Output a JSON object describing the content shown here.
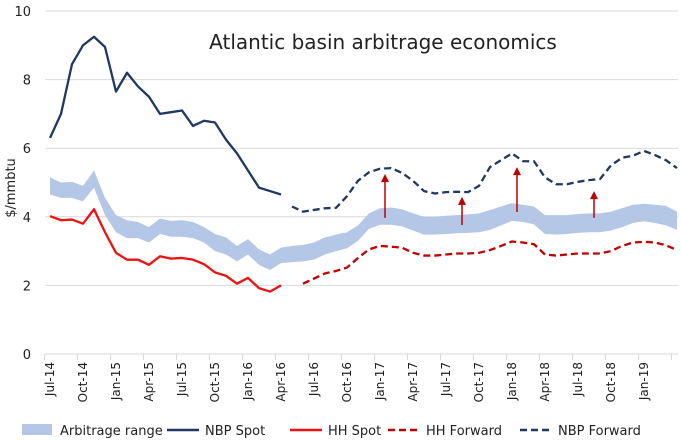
{
  "chart_data": {
    "type": "line",
    "title": "Atlantic basin arbitrage economics",
    "xlabel": "",
    "ylabel": "$/mmbtu",
    "ylim": [
      0,
      10
    ],
    "yticks": [
      0,
      2,
      4,
      6,
      8,
      10
    ],
    "grid": true,
    "legend_position": "bottom",
    "months": [
      "Jul-14",
      "Aug-14",
      "Sep-14",
      "Oct-14",
      "Nov-14",
      "Dec-14",
      "Jan-15",
      "Feb-15",
      "Mar-15",
      "Apr-15",
      "May-15",
      "Jun-15",
      "Jul-15",
      "Aug-15",
      "Sep-15",
      "Oct-15",
      "Nov-15",
      "Dec-15",
      "Jan-16",
      "Feb-16",
      "Mar-16",
      "Apr-16",
      "May-16",
      "Jun-16",
      "Jul-16",
      "Aug-16",
      "Sep-16",
      "Oct-16",
      "Nov-16",
      "Dec-16",
      "Jan-17",
      "Feb-17",
      "Mar-17",
      "Apr-17",
      "May-17",
      "Jun-17",
      "Jul-17",
      "Aug-17",
      "Sep-17",
      "Oct-17",
      "Nov-17",
      "Dec-17",
      "Jan-18",
      "Feb-18",
      "Mar-18",
      "Apr-18",
      "May-18",
      "Jun-18",
      "Jul-18",
      "Aug-18",
      "Sep-18",
      "Oct-18",
      "Nov-18",
      "Dec-18",
      "Jan-19",
      "Feb-19",
      "Mar-19",
      "Apr-19"
    ],
    "tick_labels": [
      "Jul-14",
      "Oct-14",
      "Jan-15",
      "Apr-15",
      "Jul-15",
      "Oct-15",
      "Jan-16",
      "Apr-16",
      "Jul-16",
      "Oct-16",
      "Jan-17",
      "Apr-17",
      "Jul-17",
      "Oct-17",
      "Jan-18",
      "Apr-18",
      "Jul-18",
      "Oct-18",
      "Jan-19"
    ],
    "band": {
      "name": "Arbitrage range",
      "color": "#b4c7e7",
      "upper": [
        5.15,
        5.0,
        5.02,
        4.9,
        5.35,
        4.55,
        4.05,
        3.9,
        3.85,
        3.7,
        3.95,
        3.88,
        3.9,
        3.85,
        3.7,
        3.5,
        3.4,
        3.15,
        3.35,
        3.05,
        2.9,
        3.1,
        3.15,
        3.18,
        3.25,
        3.4,
        3.48,
        3.55,
        3.75,
        4.1,
        4.25,
        4.27,
        4.22,
        4.1,
        4.0,
        4.0,
        4.03,
        4.05,
        4.07,
        4.1,
        4.2,
        4.3,
        4.4,
        4.35,
        4.3,
        4.05,
        4.05,
        4.05,
        4.08,
        4.1,
        4.1,
        4.15,
        4.25,
        4.35,
        4.38,
        4.35,
        4.32,
        4.15
      ],
      "lower": [
        4.65,
        4.55,
        4.55,
        4.45,
        4.85,
        4.05,
        3.55,
        3.38,
        3.38,
        3.25,
        3.5,
        3.42,
        3.42,
        3.38,
        3.25,
        3.0,
        2.9,
        2.7,
        2.9,
        2.6,
        2.45,
        2.65,
        2.68,
        2.7,
        2.75,
        2.9,
        3.0,
        3.08,
        3.3,
        3.65,
        3.77,
        3.77,
        3.72,
        3.6,
        3.48,
        3.48,
        3.5,
        3.52,
        3.53,
        3.55,
        3.62,
        3.75,
        3.88,
        3.85,
        3.78,
        3.5,
        3.48,
        3.5,
        3.53,
        3.55,
        3.55,
        3.6,
        3.7,
        3.82,
        3.87,
        3.82,
        3.75,
        3.62
      ]
    },
    "series": [
      {
        "name": "NBP Spot",
        "color": "#1f3864",
        "dash": false,
        "values": [
          6.3,
          7.0,
          8.45,
          9.0,
          9.25,
          8.95,
          7.65,
          8.2,
          7.8,
          7.5,
          7.0,
          7.05,
          7.1,
          6.65,
          6.8,
          6.75,
          6.25,
          5.85,
          5.35,
          4.85,
          4.75,
          4.65,
          null,
          null,
          null,
          null,
          null,
          null,
          null,
          null,
          null,
          null,
          null,
          null,
          null,
          null,
          null,
          null,
          null,
          null,
          null,
          null,
          null,
          null,
          null,
          null,
          null,
          null,
          null,
          null,
          null,
          null,
          null,
          null,
          null,
          null,
          null,
          null
        ]
      },
      {
        "name": "HH Spot",
        "color": "#ee1111",
        "dash": false,
        "values": [
          4.02,
          3.9,
          3.92,
          3.8,
          4.22,
          3.55,
          2.95,
          2.75,
          2.75,
          2.6,
          2.85,
          2.78,
          2.8,
          2.75,
          2.62,
          2.38,
          2.28,
          2.05,
          2.22,
          1.92,
          1.82,
          2.0,
          null,
          null,
          null,
          null,
          null,
          null,
          null,
          null,
          null,
          null,
          null,
          null,
          null,
          null,
          null,
          null,
          null,
          null,
          null,
          null,
          null,
          null,
          null,
          null,
          null,
          null,
          null,
          null,
          null,
          null,
          null,
          null,
          null,
          null,
          null,
          null
        ]
      },
      {
        "name": "HH Forward",
        "color": "#c00000",
        "dash": true,
        "values": [
          null,
          null,
          null,
          null,
          null,
          null,
          null,
          null,
          null,
          null,
          null,
          null,
          null,
          null,
          null,
          null,
          null,
          null,
          null,
          null,
          null,
          null,
          null,
          2.05,
          2.2,
          2.35,
          2.42,
          2.52,
          2.8,
          3.05,
          3.15,
          3.13,
          3.1,
          2.95,
          2.87,
          2.87,
          2.9,
          2.93,
          2.93,
          2.95,
          3.03,
          3.15,
          3.28,
          3.25,
          3.2,
          2.9,
          2.87,
          2.9,
          2.93,
          2.93,
          2.93,
          3.0,
          3.15,
          3.25,
          3.27,
          3.25,
          3.17,
          3.03
        ]
      },
      {
        "name": "NBP Forward",
        "color": "#1f3864",
        "dash": true,
        "values": [
          null,
          null,
          null,
          null,
          null,
          null,
          null,
          null,
          null,
          null,
          null,
          null,
          null,
          null,
          null,
          null,
          null,
          null,
          null,
          null,
          null,
          null,
          4.3,
          4.15,
          4.2,
          4.25,
          4.26,
          4.6,
          5.05,
          5.3,
          5.4,
          5.42,
          5.28,
          5.05,
          4.75,
          4.68,
          4.72,
          4.73,
          4.72,
          4.9,
          5.45,
          5.65,
          5.85,
          5.62,
          5.62,
          5.15,
          4.95,
          4.95,
          5.02,
          5.07,
          5.1,
          5.5,
          5.72,
          5.78,
          5.92,
          5.8,
          5.65,
          5.42
        ]
      }
    ],
    "arrows": {
      "color": "#c00000",
      "items": [
        {
          "month": "Jan-17",
          "from": 3.97,
          "to": 5.22
        },
        {
          "month": "Aug-17",
          "from": 3.76,
          "to": 4.55
        },
        {
          "month": "Jan-18",
          "from": 4.14,
          "to": 5.42
        },
        {
          "month": "Aug-18",
          "from": 3.97,
          "to": 4.72
        }
      ]
    }
  }
}
